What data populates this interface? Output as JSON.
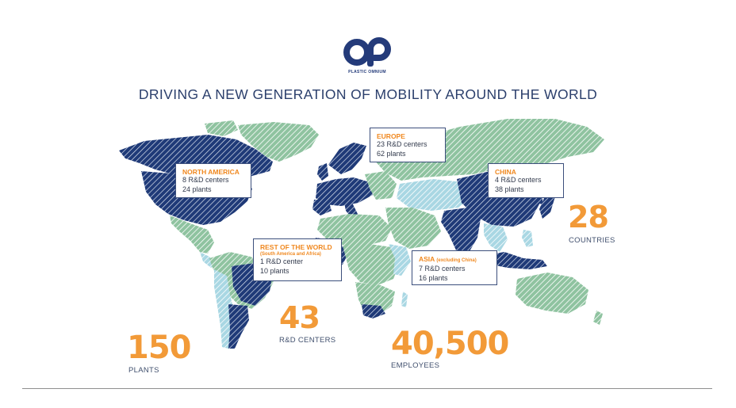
{
  "brand": {
    "name": "PLASTIC OMNIUM",
    "accent": "#f0881f",
    "navy": "#243b7a"
  },
  "title": "DRIVING A NEW GENERATION OF MOBILITY AROUND THE WORLD",
  "regions": {
    "north_america": {
      "name": "NORTH AMERICA",
      "line1": "8 R&D centers",
      "line2": "24 plants"
    },
    "europe": {
      "name": "EUROPE",
      "line1": "23 R&D centers",
      "line2": "62 plants"
    },
    "china": {
      "name": "CHINA",
      "line1": "4 R&D centers",
      "line2": "38 plants"
    },
    "rest": {
      "name": "REST OF THE WORLD",
      "sub": "(South America and Africa)",
      "line1": "1 R&D center",
      "line2": "10 plants"
    },
    "asia": {
      "name": "ASIA",
      "sub": "(excluding China)",
      "line1": "7 R&D centers",
      "line2": "16 plants"
    }
  },
  "stats": {
    "countries": {
      "value": "28",
      "label": "COUNTRIES"
    },
    "rd": {
      "value": "43",
      "label": "R&D CENTERS"
    },
    "plants": {
      "value": "150",
      "label": "PLANTS"
    },
    "employees": {
      "value": "40,500",
      "label": "EMPLOYEES"
    }
  },
  "map_colors": {
    "dark": "#253f7c",
    "green": "#9ccaa8",
    "light": "#b8dfe8"
  }
}
